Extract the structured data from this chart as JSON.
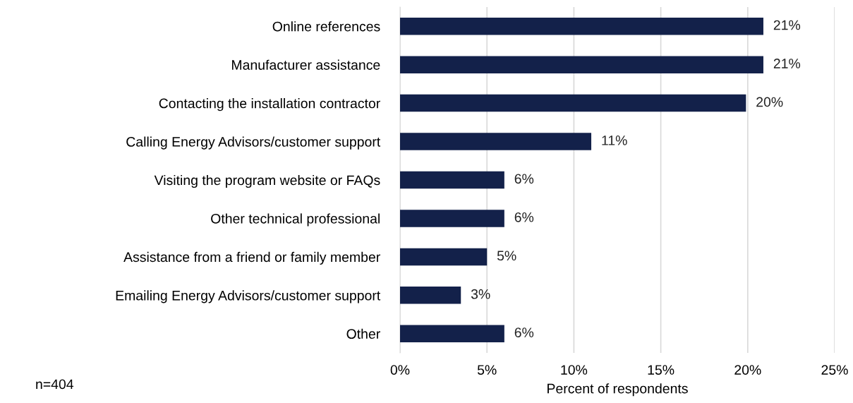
{
  "chart_data": {
    "type": "bar",
    "orientation": "horizontal",
    "xlabel": "Percent of respondents",
    "categories": [
      "Online references",
      "Manufacturer assistance",
      "Contacting the installation contractor",
      "Calling Energy Advisors/customer support",
      "Visiting the program website or FAQs",
      "Other technical professional",
      "Assistance from a friend or family member",
      "Emailing Energy Advisors/customer support",
      "Other"
    ],
    "values": [
      20.9,
      20.9,
      19.9,
      11.0,
      6.0,
      6.0,
      5.0,
      3.5,
      6.0
    ],
    "value_labels": [
      "21%",
      "21%",
      "20%",
      "11%",
      "6%",
      "6%",
      "5%",
      "3%",
      "6%"
    ],
    "color": "#13214a",
    "xlim": [
      0,
      25
    ],
    "xticks": [
      {
        "value": 0,
        "label": "0%"
      },
      {
        "value": 5,
        "label": "5%"
      },
      {
        "value": 10,
        "label": "10%"
      },
      {
        "value": 15,
        "label": "15%"
      },
      {
        "value": 20,
        "label": "20%"
      },
      {
        "value": 25,
        "label": "25%"
      }
    ],
    "grid": "x",
    "legend": false,
    "annotations": [
      "n=404"
    ]
  }
}
